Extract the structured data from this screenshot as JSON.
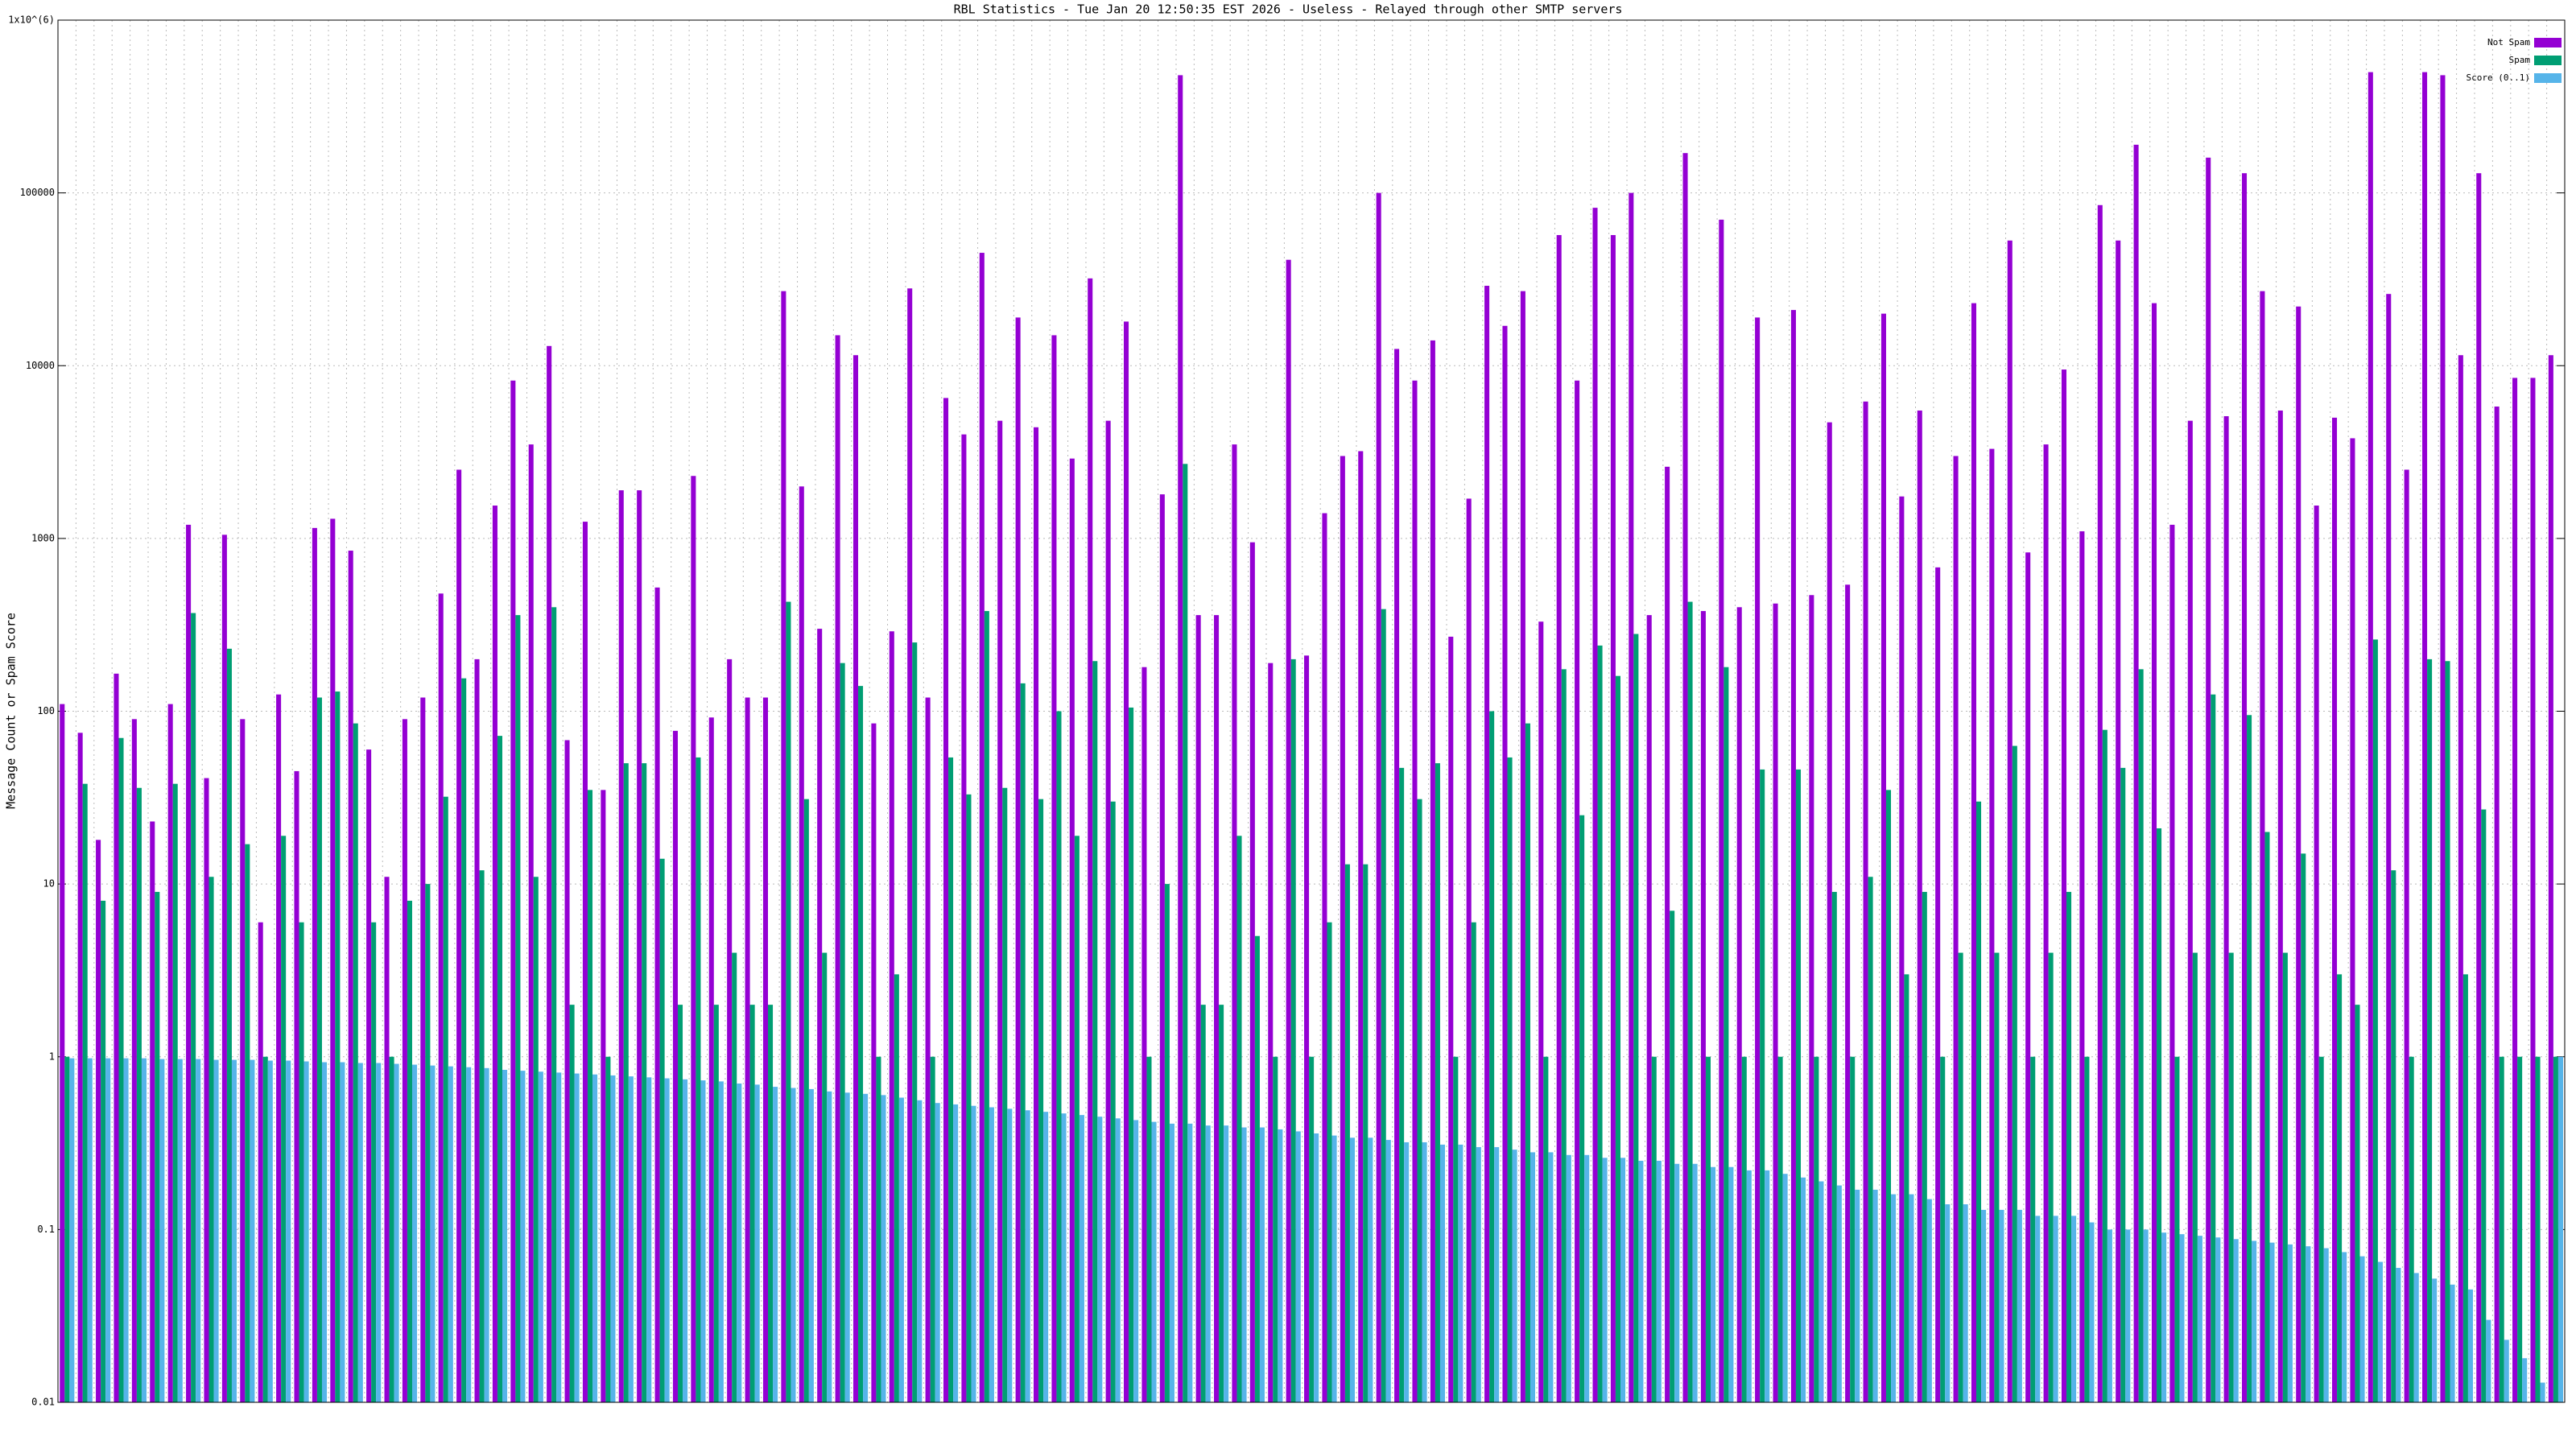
{
  "chart_data": {
    "type": "bar",
    "title": "RBL Statistics - Tue Jan 20 12:50:35 EST 2026 - Useless - Relayed through other SMTP servers",
    "y_label": "Message Count or Spam Score",
    "log_scale": true,
    "grid": true,
    "legend": "top-right",
    "categories": [
      null,
      null,
      null,
      null,
      null,
      null,
      null,
      null,
      null,
      null,
      null,
      null,
      null,
      null,
      null,
      null,
      null,
      null,
      null,
      null,
      null,
      null,
      null,
      null,
      null,
      null,
      null,
      null,
      null,
      null,
      null,
      null,
      null,
      null,
      null,
      null,
      null,
      null,
      null,
      null,
      null,
      null,
      null,
      null,
      null,
      null,
      null,
      null,
      null,
      null,
      null,
      null,
      null,
      null,
      null,
      null,
      null,
      null,
      null,
      null,
      null,
      null,
      null,
      null,
      null,
      null,
      null,
      null,
      null,
      null,
      null,
      null,
      null,
      null,
      null,
      null,
      null,
      null,
      null,
      null,
      null,
      null,
      null,
      null,
      null,
      null,
      null,
      null,
      null,
      null,
      null,
      null,
      null,
      null,
      null,
      null,
      null,
      null,
      null,
      null,
      null,
      null,
      null,
      null,
      null,
      null,
      null,
      null,
      null,
      null,
      null,
      null,
      null,
      null,
      null,
      null,
      null,
      null,
      null,
      null,
      null,
      null,
      null,
      null,
      null,
      null,
      null,
      null,
      null,
      null,
      null,
      null,
      null,
      null,
      null,
      null,
      null,
      null,
      null
    ],
    "series": [
      {
        "name": "Not Spam",
        "color": "#9400d3",
        "values": [
          110,
          75,
          18,
          165,
          90,
          23,
          110,
          1200,
          41,
          1050,
          90,
          6,
          125,
          45,
          1150,
          1300,
          850,
          60,
          11,
          90,
          120,
          480,
          2500,
          200,
          1550,
          8200,
          3500,
          13000,
          68,
          1250,
          35,
          1900,
          1900,
          520,
          77,
          2300,
          92,
          200,
          120,
          120,
          27000,
          2000,
          300,
          15000,
          11500,
          85,
          290,
          28000,
          120,
          6500,
          4000,
          45000,
          4800,
          19000,
          4400,
          15000,
          2900,
          32000,
          4800,
          18000,
          180,
          1800,
          480000,
          360,
          360,
          3500,
          950,
          190,
          41000,
          210,
          1400,
          3000,
          3200,
          100000,
          12500,
          8200,
          14000,
          270,
          1700,
          29000,
          17000,
          27000,
          330,
          57000,
          8200,
          82000,
          57000,
          100000,
          360,
          2600,
          170000,
          380,
          70000,
          400,
          19000,
          420,
          21000,
          470,
          4700,
          540,
          6200,
          20000,
          1750,
          5500,
          680,
          3000,
          23000,
          3300,
          53000,
          830,
          3500,
          9500,
          1100,
          85000,
          53000,
          190000,
          23000,
          1200,
          4800,
          160000,
          5100,
          130000,
          27000,
          5500,
          22000,
          1550,
          5000,
          3800,
          500000,
          26000,
          2500,
          500000,
          480000,
          11500,
          130000,
          5800,
          8500,
          8500,
          11500
        ]
      },
      {
        "name": "Spam",
        "color": "#009e73",
        "values": [
          1,
          38,
          8,
          70,
          36,
          9,
          38,
          370,
          11,
          230,
          17,
          1,
          19,
          6,
          120,
          130,
          85,
          6,
          1,
          8,
          10,
          32,
          155,
          12,
          72,
          360,
          11,
          400,
          2,
          35,
          1,
          50,
          50,
          14,
          2,
          54,
          2,
          4,
          2,
          2,
          430,
          31,
          4,
          190,
          140,
          1,
          3,
          250,
          1,
          54,
          33,
          380,
          36,
          145,
          31,
          100,
          19,
          195,
          30,
          105,
          1,
          10,
          2700,
          2,
          2,
          19,
          5,
          1,
          200,
          1,
          6,
          13,
          13,
          390,
          47,
          31,
          50,
          1,
          6,
          100,
          54,
          85,
          1,
          175,
          25,
          240,
          160,
          280,
          1,
          7,
          430,
          1,
          180,
          1,
          46,
          1,
          46,
          1,
          9,
          1,
          11,
          35,
          3,
          9,
          1,
          4,
          30,
          4,
          63,
          1,
          4,
          9,
          1,
          78,
          47,
          175,
          21,
          1,
          4,
          125,
          4,
          95,
          20,
          4,
          15,
          1,
          3,
          2,
          260,
          12,
          1,
          200,
          195,
          3,
          27,
          1,
          1,
          1,
          1
        ]
      },
      {
        "name": "Score (0..1)",
        "color": "#56b4e9",
        "values": [
          0.98,
          0.98,
          0.98,
          0.98,
          0.98,
          0.97,
          0.97,
          0.97,
          0.96,
          0.96,
          0.96,
          0.95,
          0.95,
          0.94,
          0.93,
          0.93,
          0.92,
          0.92,
          0.91,
          0.9,
          0.89,
          0.88,
          0.87,
          0.86,
          0.84,
          0.83,
          0.82,
          0.81,
          0.8,
          0.79,
          0.78,
          0.77,
          0.76,
          0.75,
          0.74,
          0.73,
          0.72,
          0.7,
          0.69,
          0.67,
          0.66,
          0.65,
          0.63,
          0.62,
          0.61,
          0.6,
          0.58,
          0.56,
          0.54,
          0.53,
          0.52,
          0.51,
          0.5,
          0.49,
          0.48,
          0.47,
          0.46,
          0.45,
          0.44,
          0.43,
          0.42,
          0.41,
          0.41,
          0.4,
          0.4,
          0.39,
          0.39,
          0.38,
          0.37,
          0.36,
          0.35,
          0.34,
          0.34,
          0.33,
          0.32,
          0.32,
          0.31,
          0.31,
          0.3,
          0.3,
          0.29,
          0.28,
          0.28,
          0.27,
          0.27,
          0.26,
          0.26,
          0.25,
          0.25,
          0.24,
          0.24,
          0.23,
          0.23,
          0.22,
          0.22,
          0.21,
          0.2,
          0.19,
          0.18,
          0.17,
          0.17,
          0.16,
          0.16,
          0.15,
          0.14,
          0.14,
          0.13,
          0.13,
          0.13,
          0.12,
          0.12,
          0.12,
          0.11,
          0.1,
          0.1,
          0.1,
          0.096,
          0.094,
          0.092,
          0.09,
          0.088,
          0.086,
          0.084,
          0.082,
          0.08,
          0.078,
          0.074,
          0.07,
          0.065,
          0.06,
          0.056,
          0.052,
          0.048,
          0.045,
          0.03,
          0.023,
          0.018,
          0.013,
          1
        ]
      }
    ],
    "ylim": [
      0.01,
      1000000
    ],
    "yticks": [
      0.01,
      0.1,
      1,
      10,
      100,
      1000,
      10000,
      100000,
      {
        "value": 1000000,
        "label": "1x10^(6)"
      }
    ]
  }
}
